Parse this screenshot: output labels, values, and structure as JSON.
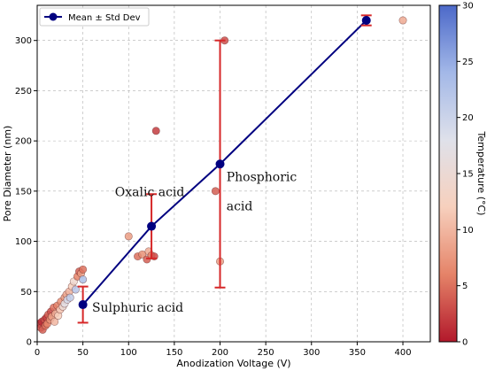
{
  "chart_data": {
    "type": "scatter",
    "xlabel": "Anodization Voltage (V)",
    "ylabel": "Pore Diameter (nm)",
    "xlim": [
      0,
      430
    ],
    "ylim": [
      0,
      335
    ],
    "xticks": [
      0,
      50,
      100,
      150,
      200,
      250,
      300,
      350,
      400
    ],
    "yticks": [
      0,
      50,
      100,
      150,
      200,
      250,
      300
    ],
    "grid": true,
    "legend": {
      "position": "top-left",
      "entries": [
        "Mean ± Std Dev"
      ]
    },
    "colorbar": {
      "label": "Temperature (°C)",
      "range": [
        0,
        30
      ],
      "ticks": [
        0,
        5,
        10,
        15,
        20,
        25,
        30
      ],
      "colormap": "coolwarm_r",
      "stops": [
        "#b2182b",
        "#e58368",
        "#f7d0bd",
        "#dfe1ea",
        "#a3b8e8",
        "#4c69c9"
      ]
    },
    "series": [
      {
        "name": "Mean ± Std Dev",
        "color": "#000080",
        "points": [
          {
            "x": 50,
            "y": 37,
            "err": 18
          },
          {
            "x": 125,
            "y": 115,
            "err": 32
          },
          {
            "x": 200,
            "y": 177,
            "err": 123
          },
          {
            "x": 360,
            "y": 320,
            "err": 5
          }
        ]
      }
    ],
    "scatter_points": [
      {
        "x": 2,
        "y": 18,
        "t": 2
      },
      {
        "x": 4,
        "y": 14,
        "t": 3
      },
      {
        "x": 5,
        "y": 20,
        "t": 1
      },
      {
        "x": 6,
        "y": 12,
        "t": 4
      },
      {
        "x": 8,
        "y": 22,
        "t": 3
      },
      {
        "x": 9,
        "y": 16,
        "t": 5
      },
      {
        "x": 10,
        "y": 24,
        "t": 2
      },
      {
        "x": 11,
        "y": 18,
        "t": 6
      },
      {
        "x": 12,
        "y": 27,
        "t": 4
      },
      {
        "x": 14,
        "y": 22,
        "t": 7
      },
      {
        "x": 15,
        "y": 30,
        "t": 3
      },
      {
        "x": 16,
        "y": 25,
        "t": 8
      },
      {
        "x": 18,
        "y": 34,
        "t": 5
      },
      {
        "x": 19,
        "y": 20,
        "t": 10
      },
      {
        "x": 20,
        "y": 28,
        "t": 9
      },
      {
        "x": 22,
        "y": 36,
        "t": 6
      },
      {
        "x": 23,
        "y": 26,
        "t": 12
      },
      {
        "x": 25,
        "y": 32,
        "t": 11
      },
      {
        "x": 26,
        "y": 40,
        "t": 7
      },
      {
        "x": 28,
        "y": 35,
        "t": 15
      },
      {
        "x": 30,
        "y": 44,
        "t": 8
      },
      {
        "x": 30,
        "y": 38,
        "t": 17
      },
      {
        "x": 32,
        "y": 47,
        "t": 9
      },
      {
        "x": 33,
        "y": 42,
        "t": 19
      },
      {
        "x": 35,
        "y": 50,
        "t": 10
      },
      {
        "x": 36,
        "y": 44,
        "t": 21
      },
      {
        "x": 38,
        "y": 55,
        "t": 12
      },
      {
        "x": 40,
        "y": 60,
        "t": 14
      },
      {
        "x": 42,
        "y": 52,
        "t": 22
      },
      {
        "x": 44,
        "y": 65,
        "t": 6
      },
      {
        "x": 46,
        "y": 70,
        "t": 4
      },
      {
        "x": 48,
        "y": 68,
        "t": 8
      },
      {
        "x": 50,
        "y": 72,
        "t": 5
      },
      {
        "x": 50,
        "y": 62,
        "t": 23
      },
      {
        "x": 100,
        "y": 105,
        "t": 8
      },
      {
        "x": 110,
        "y": 85,
        "t": 5
      },
      {
        "x": 115,
        "y": 87,
        "t": 7
      },
      {
        "x": 120,
        "y": 82,
        "t": 4
      },
      {
        "x": 122,
        "y": 90,
        "t": 9
      },
      {
        "x": 125,
        "y": 86,
        "t": 6
      },
      {
        "x": 128,
        "y": 85,
        "t": 3
      },
      {
        "x": 130,
        "y": 210,
        "t": 2
      },
      {
        "x": 195,
        "y": 150,
        "t": 4
      },
      {
        "x": 200,
        "y": 80,
        "t": 8
      },
      {
        "x": 205,
        "y": 300,
        "t": 3
      },
      {
        "x": 400,
        "y": 320,
        "t": 9
      }
    ],
    "annotations": [
      {
        "text": "Sulphuric acid",
        "x": 60,
        "y": 30
      },
      {
        "text": "Oxalic acid",
        "x": 85,
        "y": 145
      },
      {
        "text": "Phosphoric",
        "x": 207,
        "y": 160
      },
      {
        "text": "acid",
        "x": 207,
        "y": 131
      }
    ]
  }
}
